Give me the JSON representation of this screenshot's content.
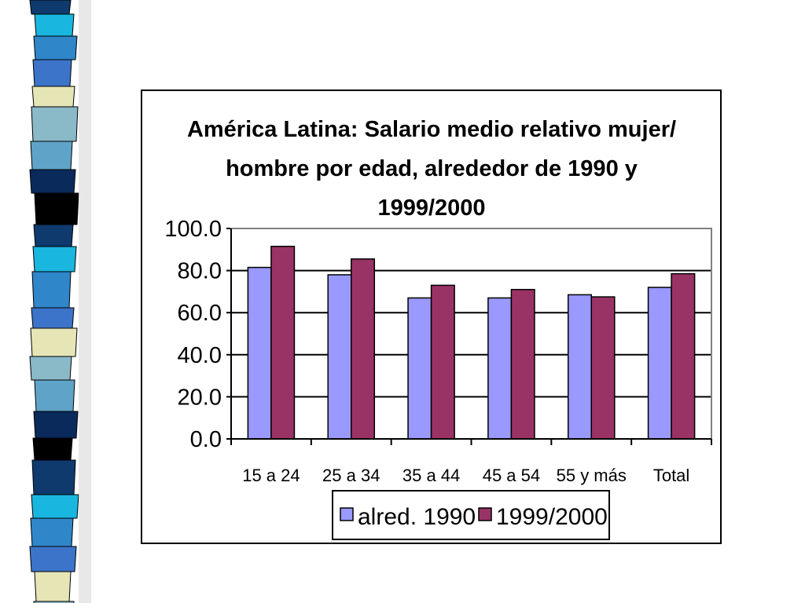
{
  "slide": {
    "strip_colors": [
      "#0e3a6e",
      "#2f86c9",
      "#e6e5b6",
      "#5fa3c8",
      "#000000",
      "#19b6e0",
      "#3c74c9",
      "#8ab9c8",
      "#0a2a5c"
    ]
  },
  "chart_data": {
    "type": "bar",
    "title_lines": [
      "América Latina: Salario medio relativo mujer/",
      "hombre por edad, alrededor de 1990 y",
      "1999/2000"
    ],
    "categories": [
      "15 a 24",
      "25 a 34",
      "35 a 44",
      "45 a 54",
      "55 y más",
      "Total"
    ],
    "series": [
      {
        "name": "alred. 1990",
        "color": "#9999ff",
        "values": [
          81.5,
          78.0,
          67.0,
          67.0,
          68.5,
          72.0
        ]
      },
      {
        "name": "1999/2000",
        "color": "#993366",
        "values": [
          91.5,
          85.5,
          73.0,
          71.0,
          67.5,
          78.5
        ]
      }
    ],
    "ylim": [
      0,
      100
    ],
    "ytick_labels": [
      "0.0",
      "20.0",
      "40.0",
      "60.0",
      "80.0",
      "100.0"
    ],
    "ytick_values": [
      0,
      20,
      40,
      60,
      80,
      100
    ],
    "grid": true,
    "legend": "bottom"
  }
}
